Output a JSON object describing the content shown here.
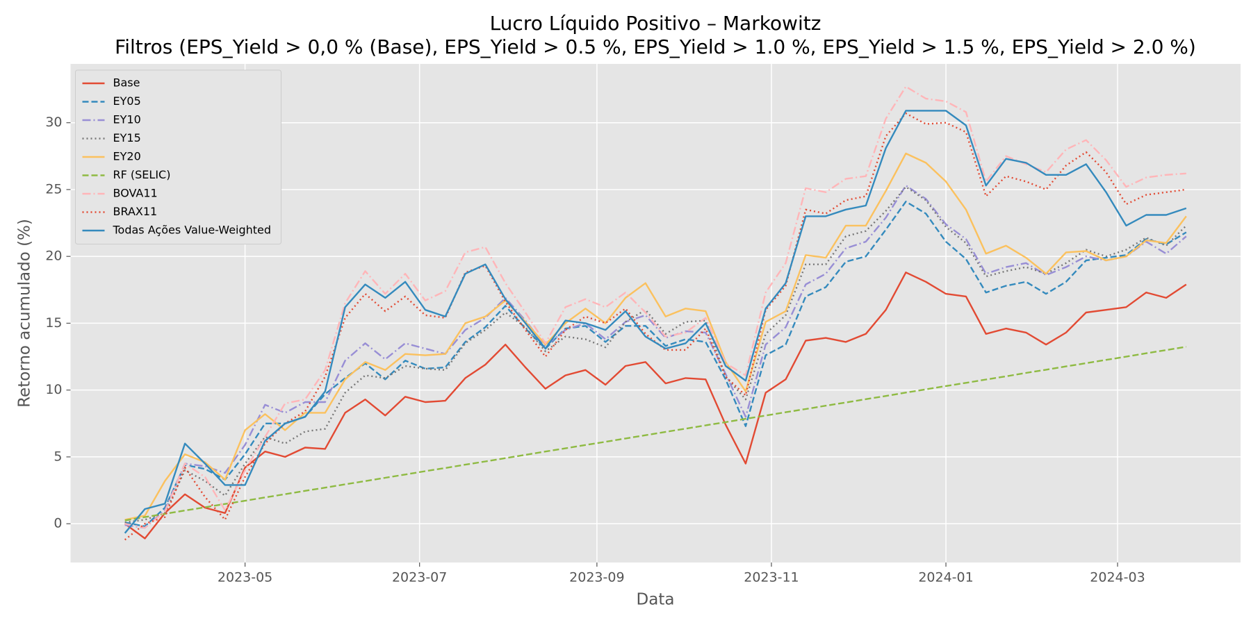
{
  "chart_data": {
    "type": "line",
    "title": "Lucro Líquido Positivo – Markowitz",
    "subtitle": "Filtros (EPS_Yield > 0,0 % (Base), EPS_Yield > 0.5 %, EPS_Yield > 1.0 %, EPS_Yield > 1.5 %, EPS_Yield > 2.0 %)",
    "x_label": "Data",
    "y_label": "Retorno acumulado (%)",
    "x": [
      "2023-03-20",
      "2023-03-27",
      "2023-04-03",
      "2023-04-10",
      "2023-04-17",
      "2023-04-24",
      "2023-05-01",
      "2023-05-08",
      "2023-05-15",
      "2023-05-22",
      "2023-05-29",
      "2023-06-05",
      "2023-06-12",
      "2023-06-19",
      "2023-06-26",
      "2023-07-03",
      "2023-07-10",
      "2023-07-17",
      "2023-07-24",
      "2023-07-31",
      "2023-08-07",
      "2023-08-14",
      "2023-08-21",
      "2023-08-28",
      "2023-09-04",
      "2023-09-11",
      "2023-09-18",
      "2023-09-25",
      "2023-10-02",
      "2023-10-09",
      "2023-10-16",
      "2023-10-23",
      "2023-10-30",
      "2023-11-06",
      "2023-11-13",
      "2023-11-20",
      "2023-11-27",
      "2023-12-04",
      "2023-12-11",
      "2023-12-18",
      "2023-12-25",
      "2024-01-01",
      "2024-01-08",
      "2024-01-15",
      "2024-01-22",
      "2024-01-29",
      "2024-02-05",
      "2024-02-12",
      "2024-02-19",
      "2024-02-26",
      "2024-03-04",
      "2024-03-11",
      "2024-03-18",
      "2024-03-25"
    ],
    "xlim": [
      "2023-03-01",
      "2024-04-13"
    ],
    "xticks": [
      {
        "value": "2023-05-01",
        "label": "2023-05"
      },
      {
        "value": "2023-07-01",
        "label": "2023-07"
      },
      {
        "value": "2023-09-01",
        "label": "2023-09"
      },
      {
        "value": "2023-11-01",
        "label": "2023-11"
      },
      {
        "value": "2024-01-01",
        "label": "2024-01"
      },
      {
        "value": "2024-03-01",
        "label": "2024-03"
      }
    ],
    "ylim": [
      -2.9,
      34.4
    ],
    "yticks": [
      0,
      5,
      10,
      15,
      20,
      25,
      30
    ],
    "grid": true,
    "legend": "upper left",
    "series": [
      {
        "name": "Base",
        "color": "#E24A33",
        "dash": "solid",
        "values": [
          0.0,
          -1.1,
          0.8,
          2.2,
          1.2,
          0.8,
          4.2,
          5.4,
          5.0,
          5.7,
          5.6,
          8.3,
          9.3,
          8.1,
          9.5,
          9.1,
          9.2,
          10.9,
          11.9,
          13.4,
          11.7,
          10.1,
          11.1,
          11.5,
          10.4,
          11.8,
          12.1,
          10.5,
          10.9,
          10.8,
          7.4,
          4.5,
          9.8,
          10.8,
          13.7,
          13.9,
          13.6,
          14.2,
          16.0,
          18.8,
          18.1,
          17.2,
          17.0,
          14.2,
          14.6,
          14.3,
          13.4,
          14.3,
          15.8,
          16.0,
          16.2,
          17.3,
          16.9,
          17.9
        ]
      },
      {
        "name": "EY05",
        "color": "#348ABD",
        "dash": "dashed",
        "values": [
          0.1,
          -0.2,
          1.2,
          4.4,
          4.1,
          3.3,
          5.2,
          7.5,
          7.5,
          8.0,
          9.7,
          10.9,
          12.0,
          10.8,
          12.2,
          11.6,
          11.7,
          13.6,
          14.7,
          16.3,
          14.6,
          13.1,
          14.6,
          14.8,
          13.6,
          14.8,
          14.8,
          13.3,
          13.8,
          13.6,
          10.8,
          7.3,
          12.6,
          13.4,
          17.0,
          17.7,
          19.6,
          20.0,
          22.0,
          24.1,
          23.2,
          21.1,
          19.8,
          17.3,
          17.8,
          18.1,
          17.2,
          18.1,
          19.7,
          19.9,
          20.1,
          21.3,
          20.9,
          21.8
        ]
      },
      {
        "name": "EY10",
        "color": "#988ED5",
        "dash": "dashdot",
        "values": [
          -0.1,
          -0.3,
          1.0,
          4.5,
          4.3,
          3.8,
          5.9,
          8.9,
          8.3,
          9.1,
          9.1,
          12.2,
          13.5,
          12.3,
          13.5,
          13.1,
          12.7,
          14.5,
          15.4,
          16.9,
          15.2,
          13.3,
          14.5,
          15.0,
          13.8,
          15.1,
          15.6,
          13.9,
          14.4,
          14.3,
          11.2,
          8.0,
          13.4,
          14.7,
          17.9,
          18.7,
          20.6,
          21.1,
          22.9,
          25.3,
          24.3,
          22.4,
          21.3,
          18.7,
          19.2,
          19.5,
          18.6,
          19.2,
          20.0,
          19.7,
          20.0,
          21.1,
          20.2,
          21.5
        ]
      },
      {
        "name": "EY15",
        "color": "#777777",
        "dash": "dotted",
        "values": [
          0.1,
          0.3,
          0.8,
          4.0,
          3.2,
          2.1,
          4.5,
          6.5,
          6.0,
          6.9,
          7.1,
          9.8,
          11.1,
          10.9,
          11.8,
          11.6,
          11.5,
          13.5,
          14.5,
          15.8,
          14.7,
          12.9,
          14.0,
          13.8,
          13.2,
          15.1,
          16.0,
          14.2,
          15.1,
          15.2,
          11.0,
          9.3,
          14.2,
          15.6,
          19.4,
          19.4,
          21.5,
          21.9,
          23.4,
          25.2,
          24.2,
          22.2,
          21.0,
          18.5,
          18.9,
          19.2,
          18.7,
          19.5,
          20.5,
          20.0,
          20.5,
          21.4,
          20.8,
          22.3
        ]
      },
      {
        "name": "EY20",
        "color": "#FBC15E",
        "dash": "solid",
        "values": [
          0.3,
          0.6,
          3.2,
          5.2,
          4.6,
          3.3,
          7.0,
          8.2,
          7.0,
          8.3,
          8.3,
          10.8,
          12.1,
          11.5,
          12.7,
          12.6,
          12.7,
          15.0,
          15.5,
          16.7,
          15.1,
          13.4,
          15.0,
          16.1,
          15.0,
          16.9,
          18.0,
          15.5,
          16.1,
          15.9,
          12.1,
          9.9,
          15.1,
          15.9,
          20.1,
          19.9,
          22.3,
          22.3,
          24.9,
          27.7,
          27.0,
          25.6,
          23.5,
          20.2,
          20.8,
          19.9,
          18.7,
          20.3,
          20.4,
          19.7,
          20.0,
          21.2,
          21.0,
          23.0
        ]
      },
      {
        "name": "RF (SELIC)",
        "color": "#8EBA42",
        "dash": "dashed",
        "values": [
          0.25,
          0.5,
          0.74,
          0.99,
          1.23,
          1.48,
          1.72,
          1.97,
          2.21,
          2.46,
          2.7,
          2.95,
          3.19,
          3.44,
          3.68,
          3.93,
          4.17,
          4.42,
          4.66,
          4.91,
          5.15,
          5.4,
          5.64,
          5.89,
          6.13,
          6.38,
          6.62,
          6.87,
          7.11,
          7.36,
          7.6,
          7.85,
          8.09,
          8.34,
          8.58,
          8.83,
          9.07,
          9.32,
          9.56,
          9.81,
          10.05,
          10.3,
          10.54,
          10.79,
          11.03,
          11.28,
          11.52,
          11.77,
          12.01,
          12.26,
          12.5,
          12.75,
          12.99,
          13.24
        ]
      },
      {
        "name": "BOVA11",
        "color": "#FFB5B8",
        "dash": "dashdot",
        "values": [
          0.0,
          -0.3,
          0.9,
          4.5,
          3.5,
          1.0,
          4.0,
          6.5,
          9.0,
          9.3,
          11.5,
          16.5,
          18.9,
          17.2,
          18.7,
          16.7,
          17.4,
          20.3,
          20.7,
          18.0,
          15.8,
          13.5,
          16.2,
          16.8,
          16.2,
          17.3,
          15.8,
          14.0,
          14.3,
          15.4,
          12.0,
          11.1,
          17.3,
          19.5,
          25.1,
          24.8,
          25.8,
          26.0,
          30.3,
          32.7,
          31.8,
          31.6,
          30.8,
          25.6,
          27.5,
          26.9,
          26.3,
          28.0,
          28.7,
          27.2,
          25.2,
          25.9,
          26.1,
          26.2
        ]
      },
      {
        "name": "BRAX11",
        "color": "#E24A33",
        "dash": "dotted",
        "values": [
          -1.2,
          0.0,
          0.5,
          4.2,
          2.0,
          0.3,
          3.5,
          6.0,
          7.5,
          8.4,
          11.0,
          15.4,
          17.2,
          15.9,
          17.0,
          15.6,
          15.4,
          18.8,
          19.3,
          16.6,
          14.5,
          12.5,
          14.5,
          15.5,
          15.0,
          16.1,
          14.2,
          13.0,
          13.0,
          14.6,
          11.0,
          9.6,
          16.0,
          17.8,
          23.5,
          23.2,
          24.2,
          24.5,
          29.0,
          30.7,
          29.9,
          30.0,
          29.3,
          24.5,
          26.0,
          25.6,
          25.0,
          26.8,
          27.8,
          26.3,
          23.9,
          24.6,
          24.8,
          25.0
        ]
      },
      {
        "name": "Todas Ações Value-Weighted",
        "color": "#348ABD",
        "dash": "solid",
        "values": [
          -0.7,
          1.1,
          1.5,
          6.0,
          4.5,
          2.9,
          2.9,
          6.2,
          7.5,
          8.0,
          9.9,
          16.2,
          17.9,
          16.9,
          18.1,
          16.0,
          15.5,
          18.7,
          19.4,
          16.8,
          15.0,
          13.1,
          15.2,
          15.0,
          14.5,
          15.9,
          14.0,
          13.1,
          13.5,
          15.0,
          11.8,
          10.7,
          16.1,
          18.0,
          23.0,
          23.0,
          23.5,
          23.8,
          28.1,
          30.9,
          30.9,
          30.9,
          29.8,
          25.3,
          27.3,
          27.0,
          26.1,
          26.1,
          26.9,
          24.8,
          22.3,
          23.1,
          23.1,
          23.6
        ]
      }
    ]
  }
}
